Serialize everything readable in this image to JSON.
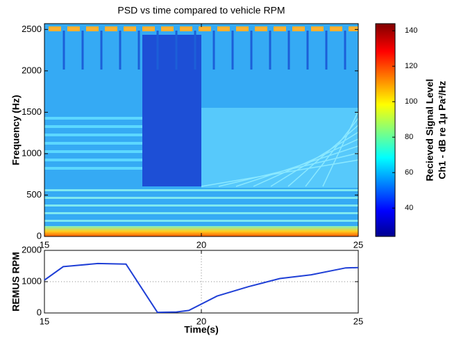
{
  "chart_data": [
    {
      "type": "heatmap",
      "title": "PSD vs time compared to vehicle RPM",
      "ylabel": "Frequency (Hz)",
      "xlim": [
        15,
        25
      ],
      "xticks": [
        15,
        20,
        25
      ],
      "ylim": [
        0,
        2570
      ],
      "yticks": [
        0,
        500,
        1000,
        1500,
        2000,
        2500
      ],
      "colormap": "jet",
      "colorbar_label": [
        "Recieved Signal Level",
        "Ch1 - dB re 1μ Pa²/Hz"
      ],
      "clim": [
        24,
        144
      ],
      "cticks": [
        40,
        60,
        80,
        100,
        120,
        140
      ]
    },
    {
      "type": "line",
      "ylabel": "REMUS RPM",
      "xlabel": "Time(s)",
      "xlim": [
        15,
        25
      ],
      "xticks": [
        15,
        20,
        25
      ],
      "ylim": [
        0,
        2000
      ],
      "yticks": [
        0,
        1000,
        2000
      ],
      "grid": true,
      "series": [
        {
          "color": "#1f3fd6",
          "x": [
            15,
            15.6,
            16.7,
            17.6,
            18.6,
            19.2,
            19.6,
            20.5,
            21.5,
            22.5,
            23.5,
            24.6,
            25
          ],
          "values": [
            1050,
            1480,
            1580,
            1560,
            20,
            30,
            80,
            540,
            840,
            1100,
            1220,
            1440,
            1450
          ]
        }
      ]
    }
  ]
}
